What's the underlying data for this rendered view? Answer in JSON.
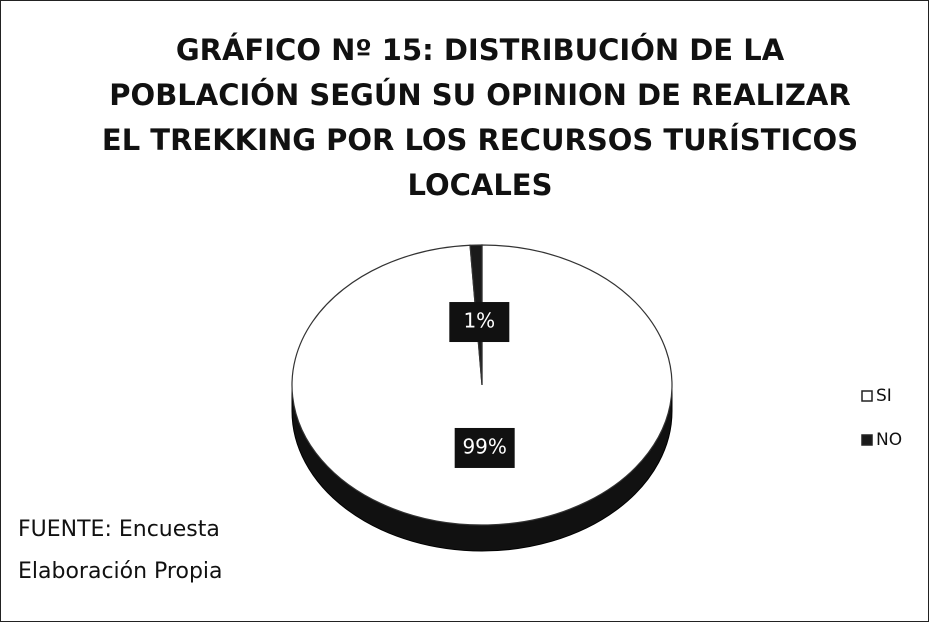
{
  "chart_data": {
    "type": "pie3d",
    "title": "GRÁFICO Nº 15: DISTRIBUCIÓN DE LA POBLACIÓN SEGÚN SU OPINION DE REALIZAR EL TREKKING POR LOS RECURSOS TURÍSTICOS LOCALES",
    "categories": [
      "SI",
      "NO"
    ],
    "values": [
      99,
      1
    ],
    "value_labels": [
      "99%",
      "1%"
    ],
    "colors": [
      "#ffffff",
      "#1a1a1a"
    ],
    "legend": "right",
    "annotations": [
      "FUENTE: Encuesta",
      "Elaboración Propia"
    ]
  }
}
